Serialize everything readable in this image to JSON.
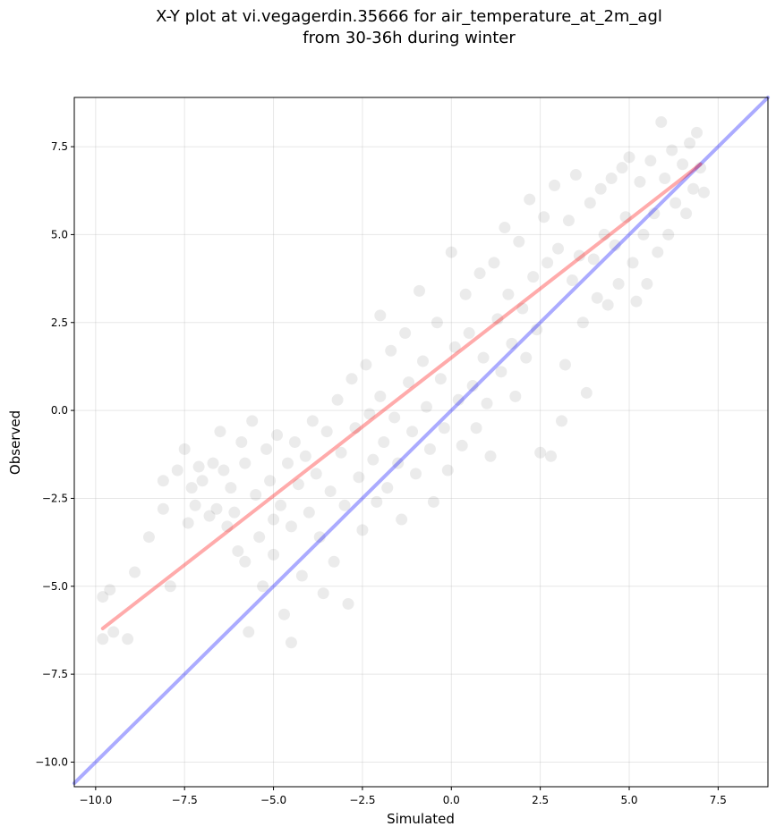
{
  "chart_data": {
    "type": "scatter",
    "title_lines": [
      "X-Y plot at vi.vegagerdin.35666 for air_temperature_at_2m_agl",
      "from 30-36h during winter"
    ],
    "xlabel": "Simulated",
    "ylabel": "Observed",
    "xlim": [
      -10.6,
      8.9
    ],
    "ylim": [
      -10.7,
      8.9
    ],
    "xticks": [
      -10.0,
      -7.5,
      -5.0,
      -2.5,
      0.0,
      2.5,
      5.0,
      7.5
    ],
    "yticks": [
      -10.0,
      -7.5,
      -5.0,
      -2.5,
      0.0,
      2.5,
      5.0,
      7.5
    ],
    "xtick_labels": [
      "−10.0",
      "−7.5",
      "−5.0",
      "−2.5",
      "0.0",
      "2.5",
      "5.0",
      "7.5"
    ],
    "ytick_labels": [
      "−10.0",
      "−7.5",
      "−5.0",
      "−2.5",
      "0.0",
      "2.5",
      "5.0",
      "7.5"
    ],
    "grid": true,
    "point_color": "#000000",
    "point_alpha": 0.08,
    "lines": [
      {
        "role": "identity",
        "color": "#0000ff",
        "alpha": 0.33,
        "x": [
          -10.6,
          8.9
        ],
        "y": [
          -10.6,
          8.9
        ]
      },
      {
        "role": "regression",
        "color": "#ff0000",
        "alpha": 0.33,
        "x": [
          -9.8,
          7.0
        ],
        "y": [
          -6.2,
          7.0
        ]
      }
    ],
    "series": [
      {
        "points": [
          [
            -9.8,
            -6.5
          ],
          [
            -9.8,
            -5.3
          ],
          [
            -9.6,
            -5.1
          ],
          [
            -9.5,
            -6.3
          ],
          [
            -9.1,
            -6.5
          ],
          [
            -8.9,
            -4.6
          ],
          [
            -8.5,
            -3.6
          ],
          [
            -8.1,
            -2.8
          ],
          [
            -8.1,
            -2.0
          ],
          [
            -7.9,
            -5.0
          ],
          [
            -7.7,
            -1.7
          ],
          [
            -7.5,
            -1.1
          ],
          [
            -7.4,
            -3.2
          ],
          [
            -7.3,
            -2.2
          ],
          [
            -7.2,
            -2.7
          ],
          [
            -7.1,
            -1.6
          ],
          [
            -7.0,
            -2.0
          ],
          [
            -6.8,
            -3.0
          ],
          [
            -6.7,
            -1.5
          ],
          [
            -6.6,
            -2.8
          ],
          [
            -6.5,
            -0.6
          ],
          [
            -6.4,
            -1.7
          ],
          [
            -6.3,
            -3.3
          ],
          [
            -6.2,
            -2.2
          ],
          [
            -6.1,
            -2.9
          ],
          [
            -6.0,
            -4.0
          ],
          [
            -5.9,
            -0.9
          ],
          [
            -5.8,
            -1.5
          ],
          [
            -5.8,
            -4.3
          ],
          [
            -5.7,
            -6.3
          ],
          [
            -5.6,
            -0.3
          ],
          [
            -5.5,
            -2.4
          ],
          [
            -5.4,
            -3.6
          ],
          [
            -5.3,
            -5.0
          ],
          [
            -5.2,
            -1.1
          ],
          [
            -5.1,
            -2.0
          ],
          [
            -5.0,
            -3.1
          ],
          [
            -5.0,
            -4.1
          ],
          [
            -4.9,
            -0.7
          ],
          [
            -4.8,
            -2.7
          ],
          [
            -4.7,
            -5.8
          ],
          [
            -4.6,
            -1.5
          ],
          [
            -4.5,
            -3.3
          ],
          [
            -4.5,
            -6.6
          ],
          [
            -4.4,
            -0.9
          ],
          [
            -4.3,
            -2.1
          ],
          [
            -4.2,
            -4.7
          ],
          [
            -4.1,
            -1.3
          ],
          [
            -4.0,
            -2.9
          ],
          [
            -3.9,
            -0.3
          ],
          [
            -3.8,
            -1.8
          ],
          [
            -3.7,
            -3.6
          ],
          [
            -3.6,
            -5.2
          ],
          [
            -3.5,
            -0.6
          ],
          [
            -3.4,
            -2.3
          ],
          [
            -3.3,
            -4.3
          ],
          [
            -3.2,
            0.3
          ],
          [
            -3.1,
            -1.2
          ],
          [
            -3.0,
            -2.7
          ],
          [
            -2.9,
            -5.5
          ],
          [
            -2.8,
            0.9
          ],
          [
            -2.7,
            -0.5
          ],
          [
            -2.6,
            -1.9
          ],
          [
            -2.5,
            -3.4
          ],
          [
            -2.4,
            1.3
          ],
          [
            -2.3,
            -0.1
          ],
          [
            -2.2,
            -1.4
          ],
          [
            -2.1,
            -2.6
          ],
          [
            -2.0,
            2.7
          ],
          [
            -2.0,
            0.4
          ],
          [
            -1.9,
            -0.9
          ],
          [
            -1.8,
            -2.2
          ],
          [
            -1.7,
            1.7
          ],
          [
            -1.6,
            -0.2
          ],
          [
            -1.5,
            -1.5
          ],
          [
            -1.4,
            -3.1
          ],
          [
            -1.3,
            2.2
          ],
          [
            -1.2,
            0.8
          ],
          [
            -1.1,
            -0.6
          ],
          [
            -1.0,
            -1.8
          ],
          [
            -0.9,
            3.4
          ],
          [
            -0.8,
            1.4
          ],
          [
            -0.7,
            0.1
          ],
          [
            -0.6,
            -1.1
          ],
          [
            -0.5,
            -2.6
          ],
          [
            -0.4,
            2.5
          ],
          [
            -0.3,
            0.9
          ],
          [
            -0.2,
            -0.5
          ],
          [
            -0.1,
            -1.7
          ],
          [
            0.0,
            4.5
          ],
          [
            0.1,
            1.8
          ],
          [
            0.2,
            0.3
          ],
          [
            0.3,
            -1.0
          ],
          [
            0.4,
            3.3
          ],
          [
            0.5,
            2.2
          ],
          [
            0.6,
            0.7
          ],
          [
            0.7,
            -0.5
          ],
          [
            0.8,
            3.9
          ],
          [
            0.9,
            1.5
          ],
          [
            1.0,
            0.2
          ],
          [
            1.1,
            -1.3
          ],
          [
            1.2,
            4.2
          ],
          [
            1.3,
            2.6
          ],
          [
            1.4,
            1.1
          ],
          [
            1.5,
            5.2
          ],
          [
            1.6,
            3.3
          ],
          [
            1.7,
            1.9
          ],
          [
            1.8,
            0.4
          ],
          [
            1.9,
            4.8
          ],
          [
            2.0,
            2.9
          ],
          [
            2.1,
            1.5
          ],
          [
            2.2,
            6.0
          ],
          [
            2.3,
            3.8
          ],
          [
            2.4,
            2.3
          ],
          [
            2.5,
            -1.2
          ],
          [
            2.6,
            5.5
          ],
          [
            2.7,
            4.2
          ],
          [
            2.8,
            -1.3
          ],
          [
            2.9,
            6.4
          ],
          [
            3.0,
            4.6
          ],
          [
            3.1,
            -0.3
          ],
          [
            3.2,
            1.3
          ],
          [
            3.3,
            5.4
          ],
          [
            3.4,
            3.7
          ],
          [
            3.5,
            6.7
          ],
          [
            3.6,
            4.4
          ],
          [
            3.7,
            2.5
          ],
          [
            3.8,
            0.5
          ],
          [
            3.9,
            5.9
          ],
          [
            4.0,
            4.3
          ],
          [
            4.1,
            3.2
          ],
          [
            4.2,
            6.3
          ],
          [
            4.3,
            5.0
          ],
          [
            4.4,
            3.0
          ],
          [
            4.5,
            6.6
          ],
          [
            4.6,
            4.7
          ],
          [
            4.7,
            3.6
          ],
          [
            4.8,
            6.9
          ],
          [
            4.9,
            5.5
          ],
          [
            5.0,
            7.2
          ],
          [
            5.1,
            4.2
          ],
          [
            5.2,
            3.1
          ],
          [
            5.3,
            6.5
          ],
          [
            5.4,
            5.0
          ],
          [
            5.5,
            3.6
          ],
          [
            5.6,
            7.1
          ],
          [
            5.7,
            5.6
          ],
          [
            5.8,
            4.5
          ],
          [
            5.9,
            8.2
          ],
          [
            6.0,
            6.6
          ],
          [
            6.1,
            5.0
          ],
          [
            6.2,
            7.4
          ],
          [
            6.3,
            5.9
          ],
          [
            6.5,
            7.0
          ],
          [
            6.6,
            5.6
          ],
          [
            6.7,
            7.6
          ],
          [
            6.8,
            6.3
          ],
          [
            6.9,
            7.9
          ],
          [
            7.0,
            6.9
          ],
          [
            7.1,
            6.2
          ]
        ]
      }
    ]
  }
}
